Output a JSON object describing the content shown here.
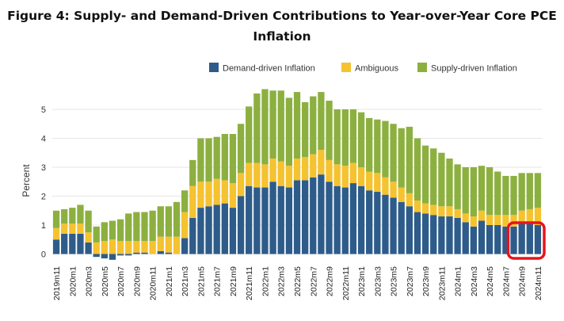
{
  "chart_data": {
    "type": "bar",
    "stacked": true,
    "title_line1": "Figure 4: Supply- and Demand-Driven Contributions to Year-over-Year Core PCE",
    "title_line2": "Inflation",
    "ylabel": "Percent",
    "xlabel": "",
    "ylim": [
      -0.3,
      5.8
    ],
    "yticks": [
      0,
      1,
      2,
      3,
      4,
      5
    ],
    "grid": true,
    "legend_position": "top-right",
    "highlight": {
      "from_category": "2024m8",
      "to_category": "2024m11",
      "color": "#e8141c"
    },
    "tick_categories": [
      "2019m11",
      "2020m1",
      "2020m3",
      "2020m5",
      "2020m7",
      "2020m9",
      "2020m11",
      "2021m1",
      "2021m3",
      "2021m5",
      "2021m7",
      "2021m9",
      "2021m11",
      "2022m1",
      "2022m3",
      "2022m5",
      "2022m7",
      "2022m9",
      "2022m11",
      "2023m1",
      "2023m3",
      "2023m5",
      "2023m7",
      "2023m9",
      "2023m11",
      "2024m1",
      "2024m3",
      "2024m5",
      "2024m7",
      "2024m9",
      "2024m11"
    ],
    "categories": [
      "2019m11",
      "2019m12",
      "2020m1",
      "2020m2",
      "2020m3",
      "2020m4",
      "2020m5",
      "2020m6",
      "2020m7",
      "2020m8",
      "2020m9",
      "2020m10",
      "2020m11",
      "2020m12",
      "2021m1",
      "2021m2",
      "2021m3",
      "2021m4",
      "2021m5",
      "2021m6",
      "2021m7",
      "2021m8",
      "2021m9",
      "2021m10",
      "2021m11",
      "2021m12",
      "2022m1",
      "2022m2",
      "2022m3",
      "2022m4",
      "2022m5",
      "2022m6",
      "2022m7",
      "2022m8",
      "2022m9",
      "2022m10",
      "2022m11",
      "2022m12",
      "2023m1",
      "2023m2",
      "2023m3",
      "2023m4",
      "2023m5",
      "2023m6",
      "2023m7",
      "2023m8",
      "2023m9",
      "2023m10",
      "2023m11",
      "2023m12",
      "2024m1",
      "2024m2",
      "2024m3",
      "2024m4",
      "2024m5",
      "2024m6",
      "2024m7",
      "2024m8",
      "2024m9",
      "2024m10",
      "2024m11"
    ],
    "series": [
      {
        "name": "Demand-driven Inflation",
        "color": "#2e5c8a",
        "values": [
          0.5,
          0.7,
          0.7,
          0.7,
          0.4,
          -0.1,
          -0.15,
          -0.2,
          -0.05,
          -0.05,
          0.05,
          0.05,
          0.0,
          0.1,
          0.05,
          0.0,
          0.55,
          1.25,
          1.6,
          1.65,
          1.7,
          1.75,
          1.6,
          2.0,
          2.35,
          2.3,
          2.3,
          2.5,
          2.35,
          2.3,
          2.55,
          2.55,
          2.65,
          2.75,
          2.5,
          2.35,
          2.3,
          2.45,
          2.35,
          2.2,
          2.15,
          2.05,
          1.95,
          1.8,
          1.65,
          1.45,
          1.4,
          1.35,
          1.3,
          1.3,
          1.25,
          1.1,
          0.95,
          1.15,
          1.0,
          1.0,
          0.95,
          0.95,
          1.05,
          1.05,
          1.0
        ]
      },
      {
        "name": "Ambiguous",
        "color": "#f5c230",
        "values": [
          0.4,
          0.35,
          0.35,
          0.35,
          0.35,
          0.4,
          0.45,
          0.5,
          0.45,
          0.45,
          0.4,
          0.4,
          0.45,
          0.5,
          0.55,
          0.6,
          0.9,
          1.1,
          0.9,
          0.85,
          0.9,
          0.8,
          0.85,
          0.8,
          0.8,
          0.85,
          0.8,
          0.8,
          0.85,
          0.75,
          0.75,
          0.8,
          0.8,
          0.85,
          0.75,
          0.75,
          0.75,
          0.7,
          0.65,
          0.65,
          0.65,
          0.6,
          0.55,
          0.5,
          0.45,
          0.4,
          0.35,
          0.35,
          0.35,
          0.35,
          0.3,
          0.3,
          0.35,
          0.35,
          0.35,
          0.35,
          0.4,
          0.4,
          0.45,
          0.5,
          0.6
        ]
      },
      {
        "name": "Supply-driven Inflation",
        "color": "#8cb040",
        "values": [
          0.6,
          0.5,
          0.55,
          0.65,
          0.75,
          0.55,
          0.65,
          0.65,
          0.75,
          0.95,
          1.0,
          1.0,
          1.05,
          1.05,
          1.05,
          1.2,
          0.75,
          0.9,
          1.5,
          1.5,
          1.45,
          1.6,
          1.7,
          1.7,
          1.95,
          2.4,
          2.6,
          2.35,
          2.45,
          2.35,
          2.3,
          1.9,
          2.0,
          2.0,
          2.05,
          1.9,
          1.95,
          1.85,
          1.9,
          1.85,
          1.85,
          1.95,
          2.0,
          2.05,
          2.3,
          2.15,
          2.0,
          1.95,
          1.85,
          1.65,
          1.55,
          1.6,
          1.7,
          1.55,
          1.65,
          1.5,
          1.35,
          1.35,
          1.3,
          1.25,
          1.2
        ]
      }
    ]
  }
}
